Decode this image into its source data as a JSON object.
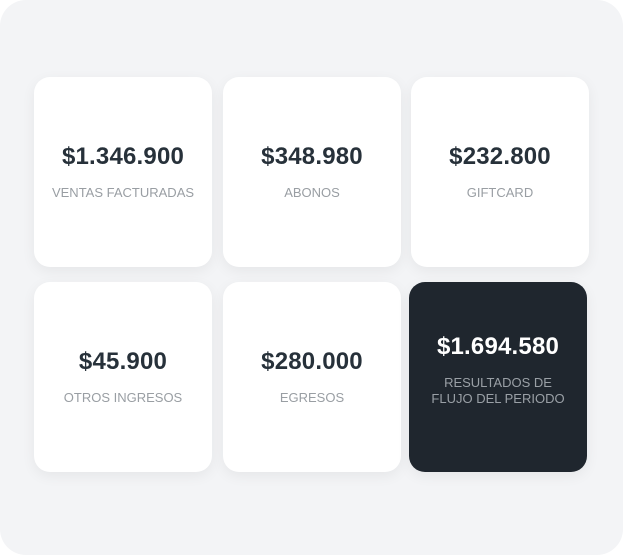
{
  "cards": [
    {
      "value": "$1.346.900",
      "label": "VENTAS FACTURADAS"
    },
    {
      "value": "$348.980",
      "label": "ABONOS"
    },
    {
      "value": "$232.800",
      "label": "GIFTCARD"
    },
    {
      "value": "$45.900",
      "label": "OTROS INGRESOS"
    },
    {
      "value": "$280.000",
      "label": "EGRESOS"
    },
    {
      "value": "$1.694.580",
      "label": "RESULTADOS DE FLUJO DEL PERIODO"
    }
  ],
  "colors": {
    "highlight_card": "#1f262e",
    "background": "#f3f4f6"
  }
}
